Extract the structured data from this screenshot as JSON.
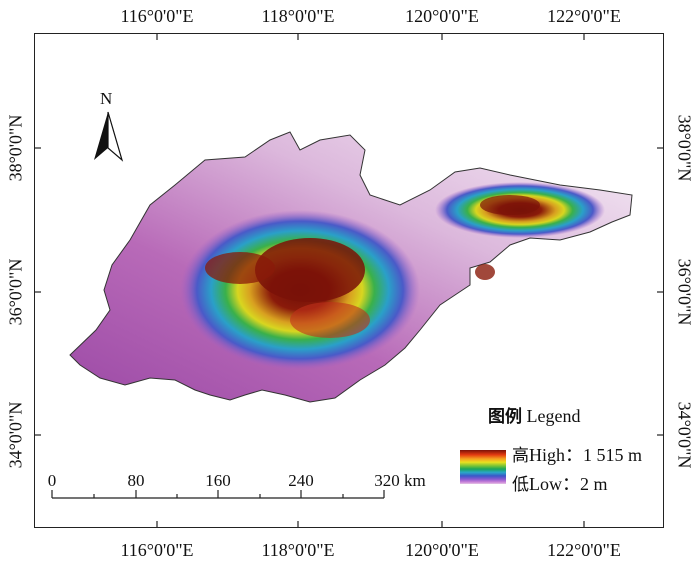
{
  "map": {
    "top_longitude_labels": [
      "116°0'0\"E",
      "118°0'0\"E",
      "120°0'0\"E",
      "122°0'0\"E"
    ],
    "bottom_longitude_labels": [
      "116°0'0\"E",
      "118°0'0\"E",
      "120°0'0\"E",
      "122°0'0\"E"
    ],
    "left_latitude_labels": [
      "38°0'0\"N",
      "36°0'0\"N",
      "34°0'0\"N"
    ],
    "right_latitude_labels": [
      "38°0'0\"N",
      "36°0'0\"N",
      "34°0'0\"N"
    ],
    "north_arrow_label": "N",
    "legend": {
      "title_cn": "图例",
      "title_en": "Legend",
      "high_cn": "高",
      "high_label": "High：1 515 m",
      "low_cn": "低",
      "low_label": "Low：2 m",
      "ramp_colors": [
        "#7a1208",
        "#e33a10",
        "#f4a020",
        "#e9e020",
        "#6ac03a",
        "#1aa55a",
        "#2aa8c8",
        "#3a58c8",
        "#8a5ad0",
        "#c880d8",
        "#e6c4e6"
      ]
    },
    "scale_bar": {
      "ticks": [
        "0",
        "80",
        "160",
        "240",
        "320 km"
      ]
    }
  }
}
